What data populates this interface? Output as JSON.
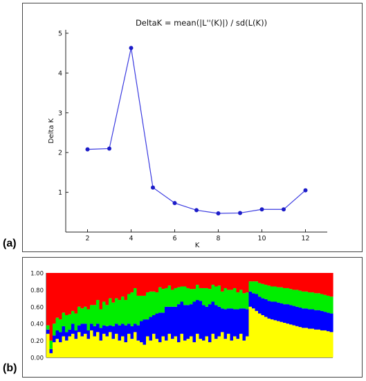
{
  "panels": {
    "a_label": "(a)",
    "b_label": "(b)"
  },
  "chart_data": [
    {
      "type": "line",
      "title": "DeltaK = mean(|L''(K)|) / sd(L(K))",
      "xlabel": "K",
      "ylabel": "Delta K",
      "x": [
        2,
        3,
        4,
        5,
        6,
        7,
        8,
        9,
        10,
        11,
        12
      ],
      "series": [
        {
          "values": [
            2.08,
            2.1,
            4.63,
            1.12,
            0.73,
            0.55,
            0.47,
            0.48,
            0.57,
            0.57,
            1.05
          ],
          "color": "#3a3ae0"
        }
      ],
      "xticks": [
        "2",
        "4",
        "6",
        "8",
        "10",
        "12"
      ],
      "yticks": [
        "1",
        "2",
        "3",
        "4",
        "5"
      ],
      "xlim": [
        1,
        13
      ],
      "ylim": [
        0,
        5
      ],
      "grid": false
    },
    {
      "type": "bar",
      "stacked": true,
      "yticks": [
        "0.00",
        "0.20",
        "0.40",
        "0.60",
        "0.80",
        "1.00"
      ],
      "ylim": [
        0,
        1
      ],
      "colors": [
        "#ffff00",
        "#0000ff",
        "#00ee00",
        "#ff0000",
        "#8b6b2a"
      ],
      "note": "stacked membership bars; individual values approximated",
      "series": [
        {
          "name_hint": "yellow",
          "values": [
            0.28,
            0.05,
            0.18,
            0.22,
            0.18,
            0.25,
            0.2,
            0.25,
            0.28,
            0.22,
            0.3,
            0.25,
            0.28,
            0.22,
            0.32,
            0.25,
            0.3,
            0.2,
            0.28,
            0.25,
            0.3,
            0.22,
            0.28,
            0.2,
            0.25,
            0.18,
            0.28,
            0.22,
            0.3,
            0.2,
            0.18,
            0.15,
            0.25,
            0.2,
            0.28,
            0.22,
            0.18,
            0.25,
            0.2,
            0.28,
            0.22,
            0.25,
            0.18,
            0.28,
            0.2,
            0.22,
            0.25,
            0.18,
            0.28,
            0.22,
            0.2,
            0.25,
            0.18,
            0.28,
            0.22,
            0.25,
            0.3,
            0.22,
            0.28,
            0.2,
            0.25,
            0.22,
            0.28,
            0.2,
            0.25,
            0.6,
            0.58,
            0.55,
            0.52,
            0.5,
            0.48,
            0.46,
            0.45,
            0.44,
            0.43,
            0.42,
            0.41,
            0.4,
            0.39,
            0.38,
            0.37,
            0.36,
            0.35,
            0.35,
            0.34,
            0.34,
            0.33,
            0.33,
            0.32,
            0.32,
            0.31,
            0.3
          ]
        },
        {
          "name_hint": "blue",
          "values": [
            0.05,
            0.05,
            0.08,
            0.1,
            0.12,
            0.12,
            0.1,
            0.08,
            0.12,
            0.1,
            0.08,
            0.15,
            0.12,
            0.1,
            0.08,
            0.12,
            0.1,
            0.15,
            0.1,
            0.12,
            0.08,
            0.15,
            0.12,
            0.18,
            0.15,
            0.2,
            0.12,
            0.15,
            0.1,
            0.18,
            0.25,
            0.3,
            0.2,
            0.28,
            0.22,
            0.3,
            0.35,
            0.28,
            0.4,
            0.32,
            0.38,
            0.35,
            0.45,
            0.38,
            0.42,
            0.4,
            0.38,
            0.48,
            0.4,
            0.45,
            0.42,
            0.35,
            0.45,
            0.38,
            0.4,
            0.35,
            0.28,
            0.35,
            0.3,
            0.38,
            0.32,
            0.35,
            0.3,
            0.38,
            0.32,
            0.18,
            0.18,
            0.2,
            0.2,
            0.2,
            0.21,
            0.21,
            0.21,
            0.22,
            0.22,
            0.22,
            0.22,
            0.23,
            0.23,
            0.23,
            0.23,
            0.23,
            0.23,
            0.23,
            0.23,
            0.23,
            0.23,
            0.23,
            0.23,
            0.22,
            0.22,
            0.22
          ]
        },
        {
          "name_hint": "green",
          "values": [
            0.05,
            0.1,
            0.14,
            0.15,
            0.15,
            0.16,
            0.2,
            0.18,
            0.15,
            0.2,
            0.22,
            0.18,
            0.2,
            0.25,
            0.22,
            0.25,
            0.28,
            0.22,
            0.28,
            0.25,
            0.32,
            0.28,
            0.3,
            0.3,
            0.32,
            0.3,
            0.35,
            0.4,
            0.42,
            0.35,
            0.3,
            0.28,
            0.32,
            0.3,
            0.28,
            0.25,
            0.3,
            0.28,
            0.22,
            0.25,
            0.2,
            0.22,
            0.2,
            0.18,
            0.22,
            0.2,
            0.18,
            0.15,
            0.18,
            0.15,
            0.2,
            0.22,
            0.18,
            0.2,
            0.22,
            0.25,
            0.2,
            0.25,
            0.22,
            0.22,
            0.25,
            0.2,
            0.22,
            0.18,
            0.2,
            0.12,
            0.14,
            0.15,
            0.16,
            0.17,
            0.17,
            0.18,
            0.18,
            0.18,
            0.18,
            0.19,
            0.19,
            0.19,
            0.19,
            0.19,
            0.2,
            0.2,
            0.2,
            0.2,
            0.2,
            0.2,
            0.2,
            0.2,
            0.2,
            0.2,
            0.2,
            0.2
          ]
        },
        {
          "name_hint": "red",
          "values": [
            0.62,
            0.8,
            0.6,
            0.53,
            0.55,
            0.47,
            0.5,
            0.49,
            0.45,
            0.48,
            0.4,
            0.42,
            0.4,
            0.43,
            0.38,
            0.38,
            0.32,
            0.43,
            0.34,
            0.38,
            0.3,
            0.35,
            0.3,
            0.32,
            0.28,
            0.32,
            0.25,
            0.23,
            0.18,
            0.27,
            0.27,
            0.27,
            0.23,
            0.22,
            0.22,
            0.23,
            0.17,
            0.19,
            0.18,
            0.15,
            0.2,
            0.18,
            0.17,
            0.16,
            0.16,
            0.18,
            0.19,
            0.19,
            0.14,
            0.18,
            0.18,
            0.18,
            0.19,
            0.14,
            0.16,
            0.15,
            0.22,
            0.18,
            0.2,
            0.2,
            0.18,
            0.23,
            0.2,
            0.24,
            0.23,
            0.1,
            0.1,
            0.1,
            0.12,
            0.13,
            0.14,
            0.15,
            0.16,
            0.16,
            0.17,
            0.17,
            0.18,
            0.18,
            0.19,
            0.2,
            0.2,
            0.21,
            0.22,
            0.22,
            0.23,
            0.23,
            0.24,
            0.24,
            0.25,
            0.26,
            0.27,
            0.28
          ]
        }
      ]
    }
  ]
}
